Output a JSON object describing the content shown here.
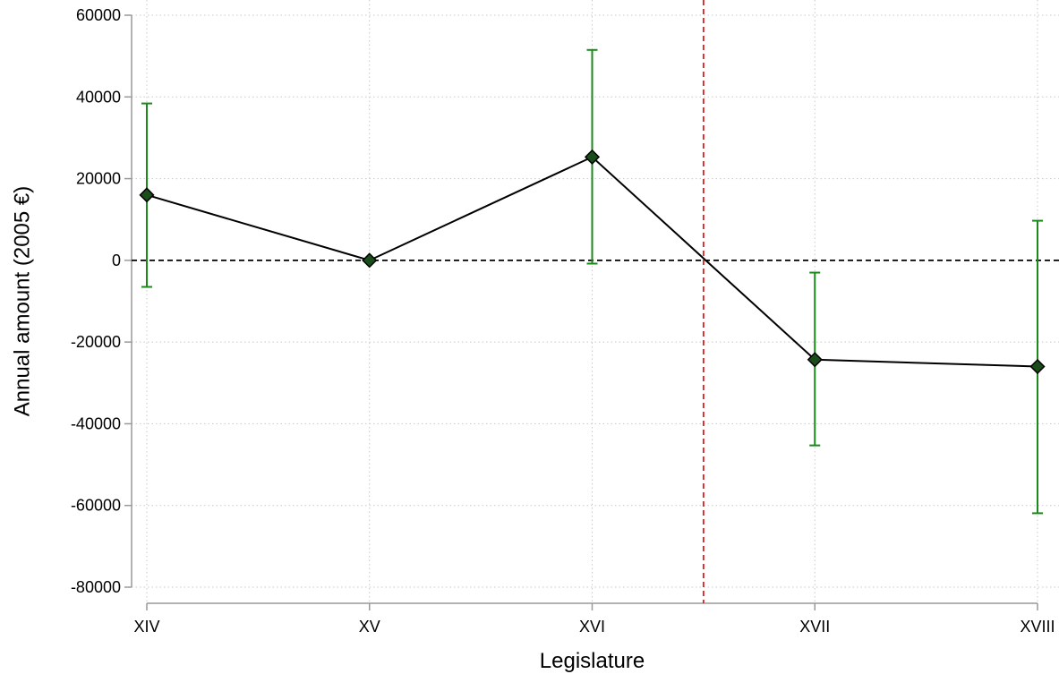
{
  "chart_data": {
    "type": "line",
    "title": "",
    "xlabel": "Legislature",
    "ylabel": "Annual amount (2005 €)",
    "categories": [
      "XIV",
      "XV",
      "XVI",
      "XVII",
      "XVIII"
    ],
    "ylim": [
      -80000,
      60000
    ],
    "yticks": [
      -80000,
      -60000,
      -40000,
      -20000,
      0,
      20000,
      40000,
      60000
    ],
    "ytick_labels": [
      "-80000",
      "-60000",
      "-40000",
      "-20000",
      "0",
      "20000",
      "40000",
      "60000"
    ],
    "grid": true,
    "series": [
      {
        "values": [
          16000,
          0,
          25300,
          -24300,
          -26000
        ],
        "ci_lower": [
          -6500,
          0,
          -800,
          -45300,
          -61900
        ],
        "ci_upper": [
          38400,
          0,
          51500,
          -3000,
          9700
        ]
      }
    ],
    "reference_lines": {
      "zero_line_y": 0,
      "vertical_line_x": 2.5
    },
    "colors": {
      "line": "#000000",
      "marker": "#1a4d1a",
      "error_bar": "#1b8a1b",
      "vertical_line": "#e41a1c",
      "grid": "#c8c8c8",
      "axis": "#999999"
    }
  }
}
